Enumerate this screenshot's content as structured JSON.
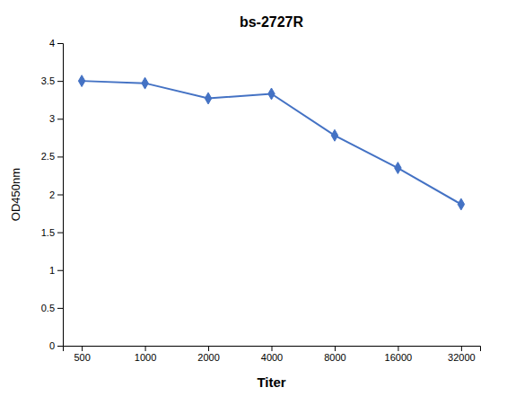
{
  "chart_data": {
    "type": "line",
    "title": "bs-2727R",
    "xlabel": "Titer",
    "ylabel": "OD450nm",
    "categories": [
      "500",
      "1000",
      "2000",
      "4000",
      "8000",
      "16000",
      "32000"
    ],
    "values": [
      3.5,
      3.47,
      3.27,
      3.33,
      2.78,
      2.35,
      1.87
    ],
    "color": "#4472C4",
    "marker": "diamond",
    "ylim": [
      0,
      4.0
    ],
    "yticks": [
      0,
      0.5,
      1,
      1.5,
      2,
      2.5,
      3,
      3.5,
      4
    ]
  }
}
